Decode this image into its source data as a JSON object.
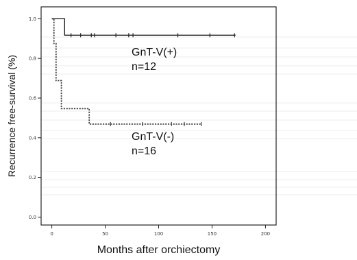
{
  "chart_data": {
    "type": "line",
    "title": "",
    "xlabel": "Months after orchiectomy",
    "ylabel": "Recurrence free-survival (%)",
    "xlim": [
      -10,
      210
    ],
    "ylim": [
      -0.04,
      1.06
    ],
    "xticks": [
      0,
      50,
      100,
      150,
      200
    ],
    "xtick_labels": [
      "0",
      "50",
      "100",
      "150",
      "200"
    ],
    "yticks": [
      0.0,
      0.2,
      0.4,
      0.6,
      0.8,
      1.0
    ],
    "ytick_labels": [
      "0.0",
      "0.2",
      "0.4",
      "0.6",
      "0.8",
      "1.0"
    ],
    "grid": false,
    "series": [
      {
        "name": "GnT-V(+)",
        "style": "solid",
        "color": "#222222",
        "steps": [
          [
            0,
            1.0
          ],
          [
            12,
            1.0
          ],
          [
            12,
            0.917
          ],
          [
            172,
            0.917
          ]
        ],
        "censored_x": [
          18,
          27,
          37,
          40,
          60,
          72,
          76,
          118,
          148,
          171
        ]
      },
      {
        "name": "GnT-V(-)",
        "style": "dashed",
        "color": "#444444",
        "steps": [
          [
            0,
            1.0
          ],
          [
            2,
            1.0
          ],
          [
            2,
            0.875
          ],
          [
            4,
            0.875
          ],
          [
            4,
            0.688
          ],
          [
            9,
            0.688
          ],
          [
            9,
            0.547
          ],
          [
            35,
            0.547
          ],
          [
            35,
            0.469
          ],
          [
            140,
            0.469
          ]
        ],
        "censored_x": [
          55,
          85,
          112,
          124,
          140
        ]
      }
    ],
    "annotations": [
      {
        "lines": [
          "GnT-V(+)",
          "n=12"
        ],
        "series": "GnT-V(+)"
      },
      {
        "lines": [
          "GnT-V(-)",
          "n=16"
        ],
        "series": "GnT-V(-)"
      }
    ]
  }
}
